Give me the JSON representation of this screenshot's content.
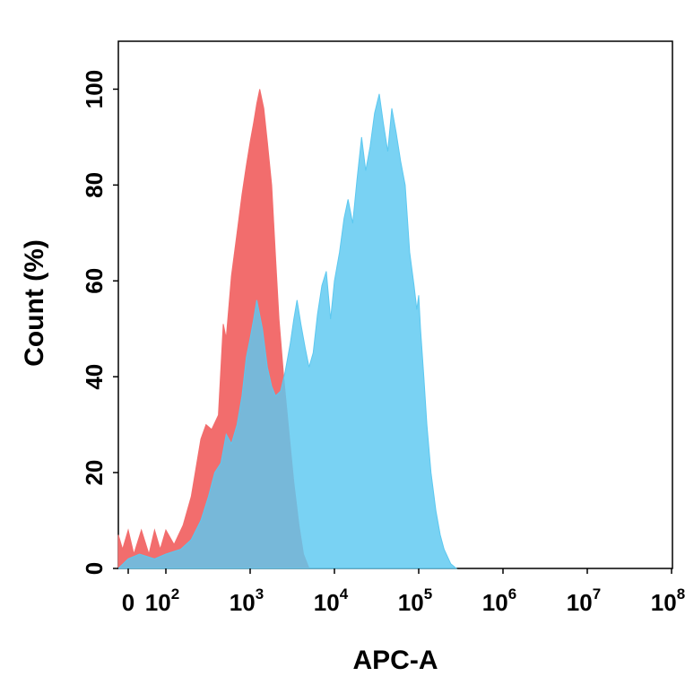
{
  "chart_data": {
    "type": "area",
    "title": "",
    "xlabel": "APC-A",
    "ylabel": "Count  (%)",
    "x_scale": "biexponential",
    "xlim": [
      -30,
      100000000
    ],
    "ylim": [
      0,
      110
    ],
    "grid": false,
    "y_ticks": [
      0,
      20,
      40,
      60,
      80,
      100
    ],
    "y_tick_labels": [
      "0",
      "20",
      "40",
      "60",
      "80",
      "100"
    ],
    "x_ticks": [
      {
        "value": 0,
        "base": "0",
        "exp": ""
      },
      {
        "value": 100,
        "base": "10",
        "exp": "2"
      },
      {
        "value": 1000,
        "base": "10",
        "exp": "3"
      },
      {
        "value": 10000,
        "base": "10",
        "exp": "4"
      },
      {
        "value": 100000,
        "base": "10",
        "exp": "5"
      },
      {
        "value": 1000000,
        "base": "10",
        "exp": "6"
      },
      {
        "value": 10000000,
        "base": "10",
        "exp": "7"
      },
      {
        "value": 100000000,
        "base": "10",
        "exp": "8"
      }
    ],
    "series": [
      {
        "color": "#f26d6d",
        "points": [
          [
            -30,
            7
          ],
          [
            -15,
            4
          ],
          [
            0,
            8
          ],
          [
            15,
            3
          ],
          [
            35,
            8
          ],
          [
            55,
            3
          ],
          [
            70,
            8
          ],
          [
            85,
            4
          ],
          [
            100,
            8
          ],
          [
            125,
            5
          ],
          [
            160,
            9
          ],
          [
            200,
            15
          ],
          [
            260,
            27
          ],
          [
            300,
            30
          ],
          [
            350,
            29
          ],
          [
            420,
            32
          ],
          [
            480,
            51
          ],
          [
            520,
            48
          ],
          [
            600,
            61
          ],
          [
            700,
            70
          ],
          [
            800,
            78
          ],
          [
            900,
            84
          ],
          [
            1000,
            89
          ],
          [
            1100,
            93
          ],
          [
            1200,
            97
          ],
          [
            1300,
            100
          ],
          [
            1450,
            96
          ],
          [
            1600,
            89
          ],
          [
            1800,
            80
          ],
          [
            2000,
            65
          ],
          [
            2200,
            52
          ],
          [
            2500,
            40
          ],
          [
            2900,
            28
          ],
          [
            3300,
            18
          ],
          [
            3800,
            9
          ],
          [
            4300,
            3
          ],
          [
            5000,
            0
          ]
        ]
      },
      {
        "color": "#5cc8f0",
        "points": [
          [
            -30,
            0
          ],
          [
            0,
            2
          ],
          [
            30,
            3
          ],
          [
            70,
            2
          ],
          [
            100,
            3
          ],
          [
            150,
            4
          ],
          [
            200,
            6
          ],
          [
            260,
            10
          ],
          [
            320,
            15
          ],
          [
            380,
            20
          ],
          [
            450,
            22
          ],
          [
            520,
            28
          ],
          [
            600,
            26
          ],
          [
            700,
            30
          ],
          [
            800,
            36
          ],
          [
            900,
            44
          ],
          [
            1000,
            48
          ],
          [
            1100,
            52
          ],
          [
            1200,
            56
          ],
          [
            1400,
            50
          ],
          [
            1600,
            42
          ],
          [
            1800,
            38
          ],
          [
            2000,
            36
          ],
          [
            2300,
            37
          ],
          [
            2600,
            41
          ],
          [
            3000,
            47
          ],
          [
            3300,
            52
          ],
          [
            3600,
            56
          ],
          [
            4000,
            51
          ],
          [
            4500,
            46
          ],
          [
            5000,
            42
          ],
          [
            5600,
            45
          ],
          [
            6300,
            53
          ],
          [
            7100,
            59
          ],
          [
            8000,
            62
          ],
          [
            9000,
            52
          ],
          [
            10000,
            60
          ],
          [
            11500,
            66
          ],
          [
            13000,
            73
          ],
          [
            14500,
            77
          ],
          [
            16500,
            72
          ],
          [
            18500,
            81
          ],
          [
            21000,
            90
          ],
          [
            23500,
            83
          ],
          [
            26500,
            88
          ],
          [
            30000,
            95
          ],
          [
            34000,
            99
          ],
          [
            38000,
            93
          ],
          [
            43000,
            87
          ],
          [
            48000,
            96
          ],
          [
            54000,
            91
          ],
          [
            61000,
            85
          ],
          [
            69000,
            80
          ],
          [
            78000,
            66
          ],
          [
            88000,
            59
          ],
          [
            95000,
            54
          ],
          [
            100000,
            57
          ],
          [
            105000,
            50
          ],
          [
            115000,
            40
          ],
          [
            125000,
            30
          ],
          [
            140000,
            20
          ],
          [
            160000,
            12
          ],
          [
            180000,
            7
          ],
          [
            200000,
            4
          ],
          [
            240000,
            1
          ],
          [
            280000,
            0
          ]
        ]
      }
    ]
  }
}
